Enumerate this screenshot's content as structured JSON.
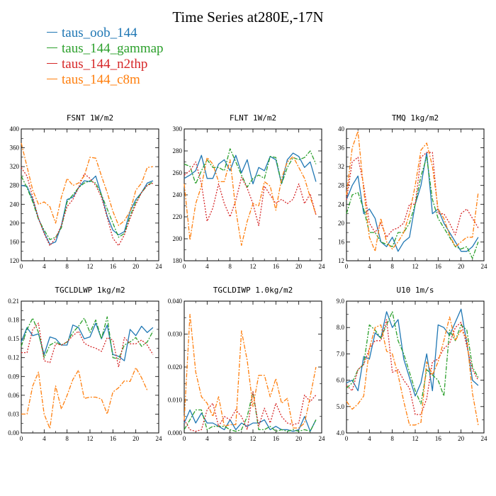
{
  "title": "Time Series at280E,-17N",
  "legend": [
    {
      "label": "taus_oob_144",
      "color": "#1f77b4"
    },
    {
      "label": "taus_144_gammap",
      "color": "#2ca02c"
    },
    {
      "label": "taus_144_n2thp",
      "color": "#d62728"
    },
    {
      "label": "taus_144_c8m",
      "color": "#ff7f0e"
    }
  ],
  "chart_data": [
    {
      "type": "line",
      "title": "FSNT  1W/m2",
      "xlim": [
        0,
        24
      ],
      "xticks": [
        0,
        4,
        8,
        12,
        16,
        20,
        24
      ],
      "ylim": [
        120,
        400
      ],
      "yticks": [
        120,
        160,
        200,
        240,
        280,
        320,
        360,
        400
      ],
      "ytick_labels": [
        "120",
        "160",
        "200",
        "240",
        "280",
        "320",
        "360",
        "400"
      ],
      "x": [
        0,
        1,
        2,
        3,
        4,
        5,
        6,
        7,
        8,
        9,
        10,
        11,
        12,
        13,
        14,
        15,
        16,
        17,
        18,
        19,
        20,
        21,
        22,
        23
      ],
      "series": [
        {
          "name": "taus_oob_144",
          "color": "#1f77b4",
          "dash": "",
          "values": [
            280,
            278,
            250,
            210,
            180,
            155,
            160,
            195,
            250,
            255,
            275,
            290,
            288,
            300,
            260,
            215,
            185,
            175,
            182,
            225,
            250,
            265,
            285,
            290
          ]
        },
        {
          "name": "taus_144_gammap",
          "color": "#2ca02c",
          "dash": "6,2,2,2",
          "values": [
            300,
            275,
            245,
            208,
            185,
            165,
            170,
            190,
            245,
            260,
            275,
            285,
            290,
            285,
            260,
            230,
            200,
            170,
            178,
            215,
            245,
            265,
            280,
            288
          ]
        },
        {
          "name": "taus_144_n2thp",
          "color": "#d62728",
          "dash": "2,2",
          "values": [
            318,
            300,
            255,
            210,
            178,
            152,
            168,
            195,
            235,
            250,
            275,
            305,
            295,
            280,
            255,
            212,
            168,
            152,
            175,
            210,
            240,
            265,
            280,
            285
          ]
        },
        {
          "name": "taus_144_c8m",
          "color": "#ff7f0e",
          "dash": "6,2,2,2",
          "values": [
            370,
            320,
            270,
            240,
            245,
            235,
            200,
            255,
            295,
            280,
            285,
            300,
            340,
            338,
            300,
            265,
            225,
            195,
            205,
            225,
            270,
            285,
            318,
            320
          ]
        }
      ]
    },
    {
      "type": "line",
      "title": "FLNT  1W/m2",
      "xlim": [
        0,
        24
      ],
      "xticks": [
        0,
        4,
        8,
        12,
        16,
        20,
        24
      ],
      "ylim": [
        180,
        300
      ],
      "yticks": [
        180,
        200,
        220,
        240,
        260,
        280,
        300
      ],
      "ytick_labels": [
        "180",
        "200",
        "220",
        "240",
        "260",
        "280",
        "300"
      ],
      "x": [
        0,
        1,
        2,
        3,
        4,
        5,
        6,
        7,
        8,
        9,
        10,
        11,
        12,
        13,
        14,
        15,
        16,
        17,
        18,
        19,
        20,
        21,
        22,
        23
      ],
      "series": [
        {
          "name": "taus_oob_144",
          "color": "#1f77b4",
          "dash": "",
          "values": [
            255,
            258,
            262,
            276,
            255,
            255,
            268,
            272,
            262,
            276,
            260,
            272,
            250,
            265,
            262,
            275,
            272,
            250,
            272,
            278,
            275,
            265,
            270,
            252
          ]
        },
        {
          "name": "taus_144_gammap",
          "color": "#2ca02c",
          "dash": "6,2,2,2",
          "values": [
            268,
            266,
            250,
            262,
            272,
            265,
            265,
            262,
            282,
            270,
            258,
            247,
            255,
            258,
            255,
            275,
            274,
            250,
            265,
            274,
            272,
            274,
            280,
            268
          ]
        },
        {
          "name": "taus_144_n2thp",
          "color": "#d62728",
          "dash": "2,2",
          "values": [
            258,
            262,
            270,
            250,
            216,
            228,
            250,
            232,
            220,
            235,
            256,
            246,
            232,
            212,
            248,
            240,
            232,
            236,
            232,
            236,
            250,
            232,
            241,
            222
          ]
        },
        {
          "name": "taus_144_c8m",
          "color": "#ff7f0e",
          "dash": "6,2,2,2",
          "values": [
            250,
            199,
            232,
            248,
            274,
            268,
            252,
            252,
            272,
            226,
            194,
            216,
            232,
            230,
            252,
            248,
            226,
            255,
            270,
            275,
            265,
            255,
            238,
            222
          ]
        }
      ]
    },
    {
      "type": "line",
      "title": "TMQ  1kg/m2",
      "xlim": [
        0,
        24
      ],
      "xticks": [
        0,
        4,
        8,
        12,
        16,
        20,
        24
      ],
      "ylim": [
        12,
        40
      ],
      "yticks": [
        12,
        16,
        20,
        24,
        28,
        32,
        36,
        40
      ],
      "ytick_labels": [
        "12",
        "16",
        "20",
        "24",
        "28",
        "32",
        "36",
        "40"
      ],
      "x": [
        0,
        1,
        2,
        3,
        4,
        5,
        6,
        7,
        8,
        9,
        10,
        11,
        12,
        13,
        14,
        15,
        16,
        17,
        18,
        19,
        20,
        21,
        22,
        23
      ],
      "series": [
        {
          "name": "taus_oob_144",
          "color": "#1f77b4",
          "dash": "",
          "values": [
            25,
            28,
            30,
            22,
            23,
            21,
            16,
            15,
            17,
            14,
            16,
            17,
            24,
            28,
            35,
            22,
            23,
            20,
            18,
            16,
            14,
            14,
            15,
            17
          ]
        },
        {
          "name": "taus_144_gammap",
          "color": "#2ca02c",
          "dash": "6,2,2,2",
          "values": [
            22,
            26,
            26.5,
            23,
            18,
            18,
            16,
            15.5,
            15,
            18,
            18,
            20,
            24,
            30,
            34,
            25,
            21,
            19,
            17,
            15,
            14.5,
            15,
            12.5,
            16
          ]
        },
        {
          "name": "taus_144_n2thp",
          "color": "#d62728",
          "dash": "2,2",
          "values": [
            25,
            33,
            34,
            28,
            20,
            18,
            20,
            17,
            18.5,
            19,
            20,
            24,
            24,
            34,
            35,
            35,
            22,
            22,
            20,
            17.5,
            22,
            23,
            21,
            19
          ]
        },
        {
          "name": "taus_144_c8m",
          "color": "#ff7f0e",
          "dash": "6,2,2,2",
          "values": [
            26,
            36,
            39.5,
            27,
            17,
            14,
            21,
            16,
            14.5,
            16,
            18,
            22,
            28,
            35.5,
            37,
            32,
            23,
            21,
            17.5,
            15,
            16,
            17,
            17,
            26.5
          ]
        }
      ]
    },
    {
      "type": "line",
      "title": "TGCLDLWP  1kg/m2",
      "xlim": [
        0,
        24
      ],
      "xticks": [
        0,
        4,
        8,
        12,
        16,
        20,
        24
      ],
      "ylim": [
        0,
        0.21
      ],
      "yticks": [
        0,
        0.03,
        0.06,
        0.09,
        0.12,
        0.15,
        0.18,
        0.21
      ],
      "ytick_labels": [
        "0.00",
        "0.03",
        "0.06",
        "0.09",
        "0.12",
        "0.15",
        "0.18",
        "0.21"
      ],
      "x": [
        0,
        1,
        2,
        3,
        4,
        5,
        6,
        7,
        8,
        9,
        10,
        11,
        12,
        13,
        14,
        15,
        16,
        17,
        18,
        19,
        20,
        21,
        22,
        23
      ],
      "series": [
        {
          "name": "taus_oob_144",
          "color": "#1f77b4",
          "dash": "",
          "values": [
            0.145,
            0.168,
            0.155,
            0.158,
            0.125,
            0.153,
            0.15,
            0.14,
            0.14,
            0.172,
            0.168,
            0.15,
            0.153,
            0.175,
            0.15,
            0.172,
            0.125,
            0.122,
            0.115,
            0.165,
            0.155,
            0.17,
            0.16,
            0.168
          ]
        },
        {
          "name": "taus_144_gammap",
          "color": "#2ca02c",
          "dash": "6,2,2,2",
          "values": [
            0.138,
            0.165,
            0.183,
            0.16,
            0.12,
            0.14,
            0.145,
            0.14,
            0.145,
            0.16,
            0.17,
            0.183,
            0.16,
            0.18,
            0.15,
            0.185,
            0.12,
            0.118,
            0.14,
            0.145,
            0.152,
            0.138,
            0.145,
            0.162
          ]
        },
        {
          "name": "taus_144_n2thp",
          "color": "#d62728",
          "dash": "2,2",
          "values": [
            0.128,
            0.128,
            0.165,
            0.175,
            0.115,
            0.112,
            0.142,
            0.14,
            0.145,
            0.155,
            0.162,
            0.143,
            0.138,
            0.135,
            0.13,
            0.152,
            0.148,
            0.105,
            0.152,
            0.142,
            0.142,
            0.148,
            0.14,
            0.125
          ]
        },
        {
          "name": "taus_144_c8m",
          "color": "#ff7f0e",
          "dash": "6,2,2,2",
          "values": [
            0.03,
            0.03,
            0.075,
            0.097,
            0.03,
            0.007,
            0.075,
            0.038,
            0.06,
            0.085,
            0.1,
            0.055,
            0.057,
            0.057,
            0.054,
            0.03,
            0.065,
            0.072,
            0.083,
            0.082,
            0.104,
            0.088,
            0.068,
            null
          ]
        }
      ]
    },
    {
      "type": "line",
      "title": "TGCLDIWP  1.0kg/m2",
      "xlim": [
        0,
        24
      ],
      "xticks": [
        0,
        4,
        8,
        12,
        16,
        20,
        24
      ],
      "ylim": [
        0,
        0.04
      ],
      "yticks": [
        0,
        0.01,
        0.02,
        0.03,
        0.04
      ],
      "ytick_labels": [
        "0.000",
        "0.010",
        "0.020",
        "0.030",
        "0.040"
      ],
      "x": [
        0,
        1,
        2,
        3,
        4,
        5,
        6,
        7,
        8,
        9,
        10,
        11,
        12,
        13,
        14,
        15,
        16,
        17,
        18,
        19,
        20,
        21,
        22,
        23
      ],
      "series": [
        {
          "name": "taus_oob_144",
          "color": "#1f77b4",
          "dash": "",
          "values": [
            0.003,
            0.007,
            0.003,
            0.006,
            0.003,
            0.003,
            0.002,
            0.001,
            0.004,
            0.001,
            0.003,
            0.002,
            0.003,
            0.003,
            0.004,
            0.001,
            0.002,
            0.001,
            0.001,
            0.0005,
            0.001,
            0.005,
            0.0005,
            0.004
          ]
        },
        {
          "name": "taus_144_gammap",
          "color": "#2ca02c",
          "dash": "6,2,2,2",
          "values": [
            0.001,
            0.004,
            0.007,
            0.007,
            0.001,
            0.002,
            0.002,
            0.002,
            0.001,
            0.0005,
            0.001,
            0.005,
            0.0125,
            0.001,
            0.001,
            0.002,
            0.0005,
            0.001,
            0.0005,
            0.001,
            0.0005,
            0.001,
            0.0005,
            0.004
          ]
        },
        {
          "name": "taus_144_n2thp",
          "color": "#d62728",
          "dash": "2,2",
          "values": [
            0.004,
            0.001,
            0.0005,
            0.001,
            0.007,
            0.009,
            0.002,
            0.005,
            0.004,
            0.007,
            0.005,
            0.001,
            0.0125,
            0.002,
            0.0075,
            0.003,
            0.009,
            0.005,
            0.003,
            0.0025,
            0.003,
            0.0115,
            0.0095,
            0.0115
          ]
        },
        {
          "name": "taus_144_c8m",
          "color": "#ff7f0e",
          "dash": "6,2,2,2",
          "values": [
            0.004,
            0.036,
            0.0185,
            0.011,
            0.009,
            0.005,
            0.011,
            0.002,
            0.0025,
            0.0025,
            0.031,
            0.022,
            0.008,
            0.0175,
            0.0175,
            0.011,
            0.0165,
            0.009,
            0.0105,
            0.0015,
            0.0015,
            0.003,
            0.011,
            0.02
          ]
        }
      ]
    },
    {
      "type": "line",
      "title": "U10  1m/s",
      "xlim": [
        0,
        24
      ],
      "xticks": [
        0,
        4,
        8,
        12,
        16,
        20,
        24
      ],
      "ylim": [
        4,
        9
      ],
      "yticks": [
        4,
        5,
        6,
        7,
        8,
        9
      ],
      "ytick_labels": [
        "4.0",
        "5.0",
        "6.0",
        "7.0",
        "8.0",
        "9.0"
      ],
      "x": [
        0,
        1,
        2,
        3,
        4,
        5,
        6,
        7,
        8,
        9,
        10,
        11,
        12,
        13,
        14,
        15,
        16,
        17,
        18,
        19,
        20,
        21,
        22,
        23
      ],
      "series": [
        {
          "name": "taus_oob_144",
          "color": "#1f77b4",
          "dash": "",
          "values": [
            5.9,
            6.0,
            5.6,
            6.9,
            6.8,
            7.8,
            7.6,
            8.6,
            8.0,
            8.3,
            6.8,
            6.1,
            5.4,
            5.9,
            7.0,
            5.6,
            8.1,
            8.0,
            7.7,
            8.2,
            8.7,
            7.4,
            6.0,
            5.8
          ]
        },
        {
          "name": "taus_144_gammap",
          "color": "#2ca02c",
          "dash": "6,2,2,2",
          "values": [
            5.7,
            5.9,
            6.4,
            6.6,
            8.1,
            7.9,
            7.6,
            8.1,
            8.6,
            7.5,
            7.0,
            6.3,
            5.6,
            5.1,
            6.4,
            6.2,
            6.0,
            5.4,
            7.9,
            7.5,
            8.1,
            7.9,
            6.5,
            6.1
          ]
        },
        {
          "name": "taus_144_n2thp",
          "color": "#d62728",
          "dash": "2,2",
          "values": [
            5.8,
            5.6,
            6.4,
            6.6,
            7.2,
            7.5,
            7.5,
            8.3,
            6.3,
            6.4,
            6.0,
            5.7,
            4.7,
            4.7,
            5.3,
            6.7,
            6.8,
            7.2,
            7.4,
            8.0,
            8.2,
            7.3,
            6.4,
            6.0
          ]
        },
        {
          "name": "taus_144_c8m",
          "color": "#ff7f0e",
          "dash": "6,2,2,2",
          "values": [
            5.2,
            4.9,
            5.1,
            5.4,
            7.2,
            8.0,
            8.1,
            7.1,
            7.0,
            6.2,
            5.2,
            4.3,
            4.3,
            4.4,
            6.7,
            6.2,
            6.7,
            7.5,
            8.4,
            7.5,
            7.9,
            7.6,
            5.5,
            4.3
          ]
        }
      ]
    }
  ]
}
